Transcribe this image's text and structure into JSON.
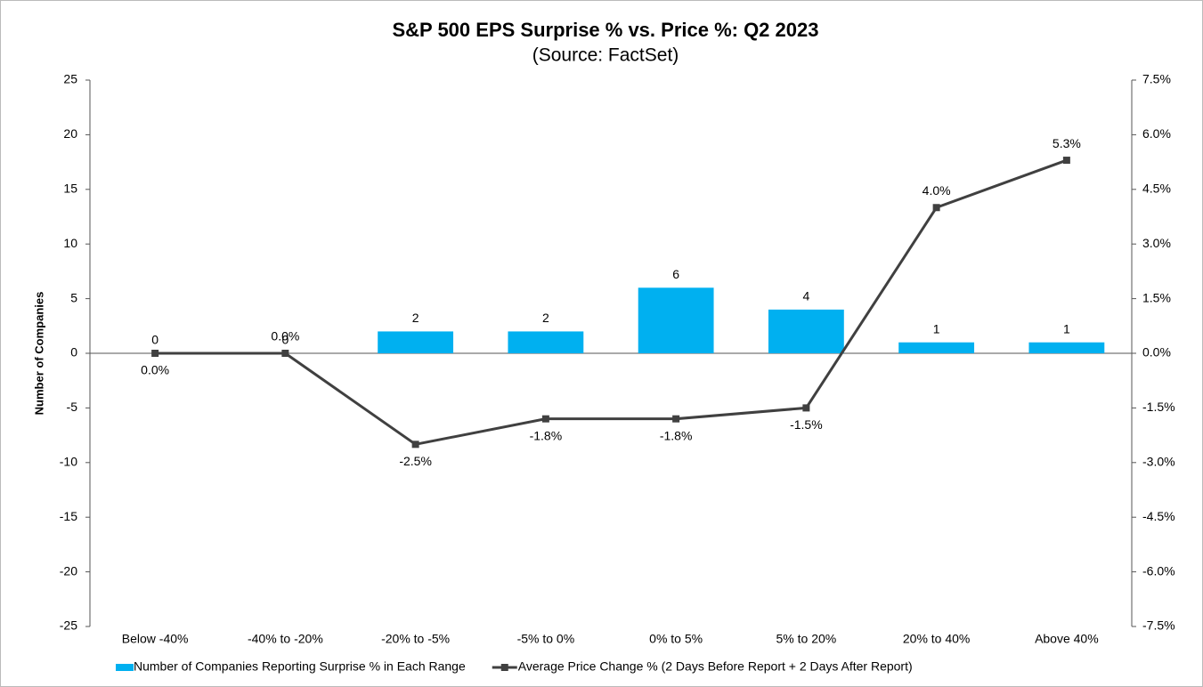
{
  "chart_data": {
    "type": "bar_line",
    "title": "S&P 500 EPS Surprise % vs. Price %: Q2 2023",
    "subtitle": "(Source: FactSet)",
    "y_label": "Number of Companies",
    "categories": [
      "Below -40%",
      "-40% to -20%",
      "-20% to -5%",
      "-5% to 0%",
      "0% to 5%",
      "5% to 20%",
      "20% to 40%",
      "Above 40%"
    ],
    "series": [
      {
        "name": "Number of Companies Reporting Surprise % in Each Range",
        "color": "#00b0f0",
        "type": "bar",
        "axis": "y",
        "values": [
          0,
          0,
          2,
          2,
          6,
          4,
          1,
          1
        ]
      },
      {
        "name": "Average Price Change % (2 Days Before Report + 2 Days After Report)",
        "color": "#404040",
        "type": "line",
        "axis": "y2",
        "values": [
          0.0,
          0.0,
          -2.5,
          -1.8,
          -1.8,
          -1.5,
          4.0,
          5.3
        ],
        "value_labels": [
          "0.0%",
          "0.0%",
          "-2.5%",
          "-1.8%",
          "-1.8%",
          "-1.5%",
          "4.0%",
          "5.3%"
        ]
      }
    ],
    "ylim": [
      -25,
      25
    ],
    "yticks": [
      -25,
      -20,
      -15,
      -10,
      -5,
      0,
      5,
      10,
      15,
      20,
      25
    ],
    "y2lim": [
      -7.5,
      7.5
    ],
    "y2ticks": [
      {
        "value": -7.5,
        "label": "-7.5%"
      },
      {
        "value": -6.0,
        "label": "-6.0%"
      },
      {
        "value": -4.5,
        "label": "-4.5%"
      },
      {
        "value": -3.0,
        "label": "-3.0%"
      },
      {
        "value": -1.5,
        "label": "-1.5%"
      },
      {
        "value": 0.0,
        "label": "0.0%"
      },
      {
        "value": 1.5,
        "label": "1.5%"
      },
      {
        "value": 3.0,
        "label": "3.0%"
      },
      {
        "value": 4.5,
        "label": "4.5%"
      },
      {
        "value": 6.0,
        "label": "6.0%"
      },
      {
        "value": 7.5,
        "label": "7.5%"
      }
    ],
    "legend": "bottom"
  }
}
